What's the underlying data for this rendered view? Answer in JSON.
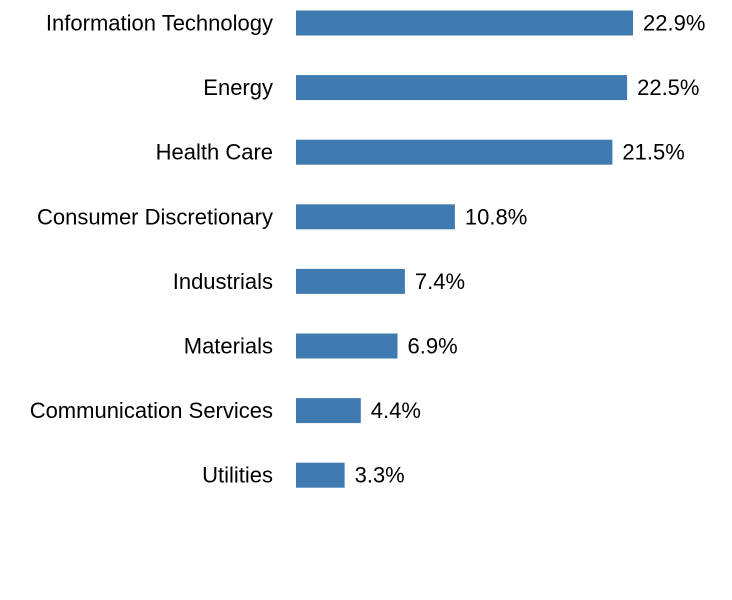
{
  "chart_data": {
    "type": "bar",
    "orientation": "horizontal",
    "categories": [
      "Information Technology",
      "Energy",
      "Health Care",
      "Consumer Discretionary",
      "Industrials",
      "Materials",
      "Communication Services",
      "Utilities"
    ],
    "values": [
      22.9,
      22.5,
      21.5,
      10.8,
      7.4,
      6.9,
      4.4,
      3.3
    ],
    "value_labels": [
      "22.9%",
      "22.5%",
      "21.5%",
      "10.8%",
      "7.4%",
      "6.9%",
      "4.4%",
      "3.3%"
    ],
    "unit": "%",
    "title": "",
    "xlabel": "",
    "ylabel": "",
    "xlim": [
      0,
      22.9
    ],
    "grid": false,
    "legend": "none",
    "bar_color": "#3f7ab0"
  }
}
